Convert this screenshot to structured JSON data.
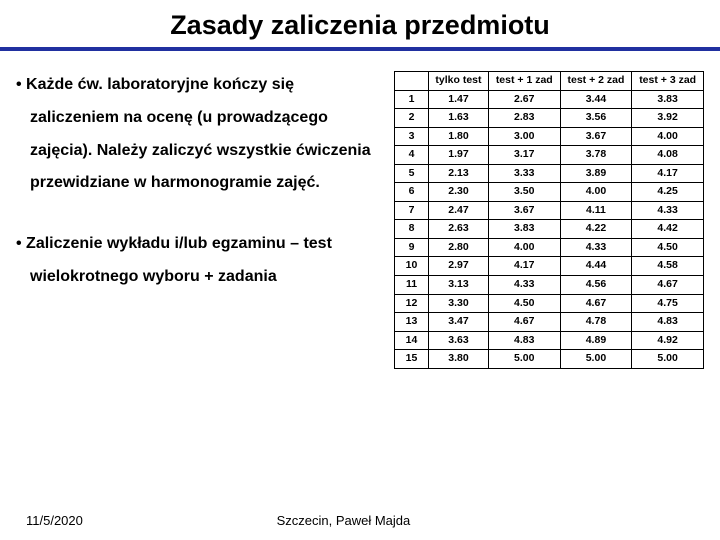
{
  "title": "Zasady zaliczenia przedmiotu",
  "bullets": [
    "• Każde ćw. laboratoryjne kończy się zaliczeniem na ocenę (u prowadzącego zajęcia). Należy zaliczyć wszystkie ćwiczenia przewidziane w harmonogramie zajęć.",
    "• Zaliczenie wykładu i/lub egzaminu – test wielokrotnego wyboru + zadania"
  ],
  "table": {
    "type": "table",
    "columns": [
      "",
      "tylko test",
      "test + 1 zad",
      "test + 2 zad",
      "test + 3 zad"
    ],
    "rows": [
      [
        "1",
        "1.47",
        "2.67",
        "3.44",
        "3.83"
      ],
      [
        "2",
        "1.63",
        "2.83",
        "3.56",
        "3.92"
      ],
      [
        "3",
        "1.80",
        "3.00",
        "3.67",
        "4.00"
      ],
      [
        "4",
        "1.97",
        "3.17",
        "3.78",
        "4.08"
      ],
      [
        "5",
        "2.13",
        "3.33",
        "3.89",
        "4.17"
      ],
      [
        "6",
        "2.30",
        "3.50",
        "4.00",
        "4.25"
      ],
      [
        "7",
        "2.47",
        "3.67",
        "4.11",
        "4.33"
      ],
      [
        "8",
        "2.63",
        "3.83",
        "4.22",
        "4.42"
      ],
      [
        "9",
        "2.80",
        "4.00",
        "4.33",
        "4.50"
      ],
      [
        "10",
        "2.97",
        "4.17",
        "4.44",
        "4.58"
      ],
      [
        "11",
        "3.13",
        "4.33",
        "4.56",
        "4.67"
      ],
      [
        "12",
        "3.30",
        "4.50",
        "4.67",
        "4.75"
      ],
      [
        "13",
        "3.47",
        "4.67",
        "4.78",
        "4.83"
      ],
      [
        "14",
        "3.63",
        "4.83",
        "4.89",
        "4.92"
      ],
      [
        "15",
        "3.80",
        "5.00",
        "5.00",
        "5.00"
      ]
    ],
    "border_color": "#000000",
    "font_size": 10.5,
    "cell_align": "center"
  },
  "footer": {
    "date": "11/5/2020",
    "author": "Szczecin, Paweł Majda"
  },
  "colors": {
    "rule": "#2030a0",
    "text": "#000000",
    "background": "#ffffff"
  }
}
